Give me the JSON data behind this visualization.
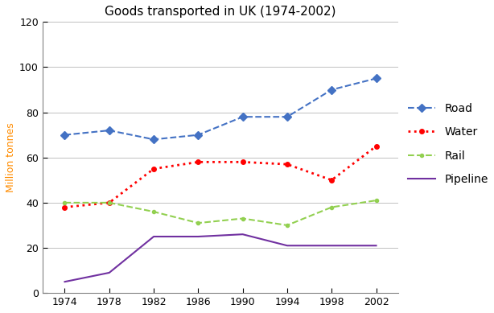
{
  "title": "Goods transported in UK (1974-2002)",
  "ylabel": "Million tonnes",
  "years": [
    1974,
    1978,
    1982,
    1986,
    1990,
    1994,
    1998,
    2002
  ],
  "road": [
    70,
    72,
    68,
    70,
    78,
    78,
    90,
    95
  ],
  "water": [
    38,
    40,
    55,
    58,
    58,
    57,
    50,
    65
  ],
  "rail": [
    40,
    40,
    36,
    31,
    33,
    30,
    38,
    41
  ],
  "pipeline": [
    5,
    9,
    25,
    25,
    26,
    21,
    21,
    21
  ],
  "road_color": "#4472C4",
  "water_color": "#FF0000",
  "rail_color": "#92D050",
  "pipeline_color": "#7030A0",
  "ylabel_color": "#FF8C00",
  "ylim": [
    0,
    120
  ],
  "yticks": [
    0,
    20,
    40,
    60,
    80,
    100,
    120
  ],
  "xlim": [
    1972,
    2004
  ],
  "title_fontsize": 11,
  "axis_label_fontsize": 9,
  "tick_fontsize": 9,
  "legend_fontsize": 10
}
